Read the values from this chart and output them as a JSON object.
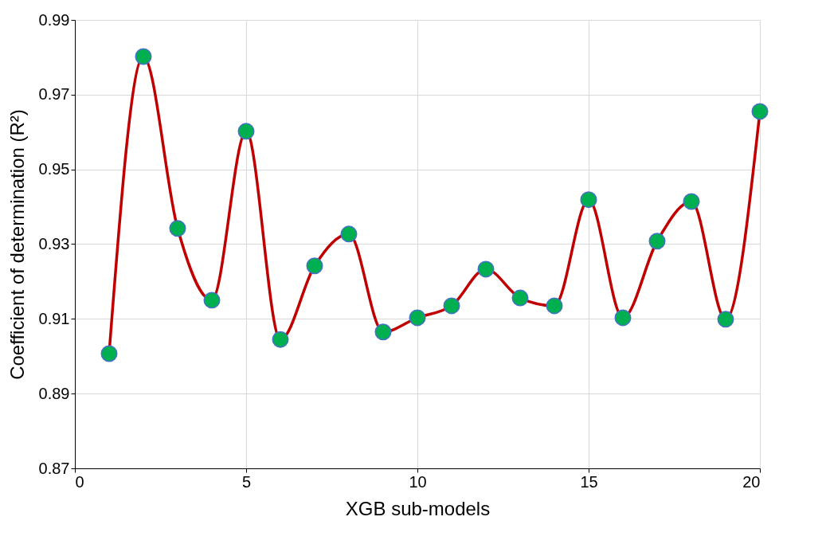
{
  "chart_data": {
    "type": "line",
    "xlabel": "XGB sub-models",
    "ylabel": "Coefficient of determination (R²)",
    "x": [
      1,
      2,
      3,
      4,
      5,
      6,
      7,
      8,
      9,
      10,
      11,
      12,
      13,
      14,
      15,
      16,
      17,
      18,
      19,
      20
    ],
    "series": [
      {
        "color": "#c00000",
        "values": [
          0.9007,
          0.9802,
          0.9342,
          0.915,
          0.9602,
          0.9045,
          0.9242,
          0.9327,
          0.9065,
          0.9103,
          0.9135,
          0.9233,
          0.9156,
          0.9135,
          0.9419,
          0.9103,
          0.9308,
          0.9414,
          0.9099,
          0.9655
        ]
      }
    ],
    "xlim": [
      0,
      20
    ],
    "xticks": [
      0,
      5,
      10,
      15,
      20
    ],
    "ylim": [
      0.87,
      0.99
    ],
    "yticks": [
      0.87,
      0.89,
      0.91,
      0.93,
      0.95,
      0.97,
      0.99
    ],
    "grid": true,
    "marker": "circle",
    "line_style": "solid"
  }
}
